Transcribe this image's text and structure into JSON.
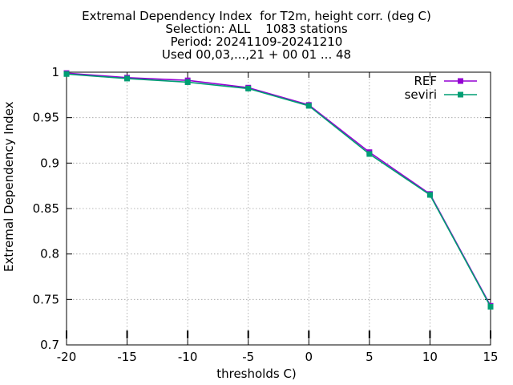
{
  "chart_data": {
    "type": "line",
    "title_lines": [
      "Extremal Dependency Index  for T2m, height corr. (deg C)",
      "Selection: ALL    1083 stations",
      "Period: 20241109-20241210",
      "Used 00,03,...,21 + 00 01 ... 48"
    ],
    "xlabel": "thresholds C)",
    "ylabel": "Extremal Dependency Index",
    "x": [
      -20,
      -15,
      -10,
      -5,
      0,
      5,
      10,
      15
    ],
    "x_ticks": [
      "-20",
      "-15",
      "-10",
      "-5",
      "0",
      "5",
      "10",
      "15"
    ],
    "y_ticks": [
      "1",
      "0.95",
      "0.9",
      "0.85",
      "0.8",
      "0.75",
      "0.7"
    ],
    "xlim": [
      -20,
      15
    ],
    "ylim": [
      0.7,
      1.0
    ],
    "grid": true,
    "legend_position": "top-right",
    "series": [
      {
        "name": "REF",
        "color": "#9400d3",
        "values": [
          0.999,
          0.994,
          0.991,
          0.983,
          0.964,
          0.912,
          0.866,
          0.743
        ]
      },
      {
        "name": "seviri",
        "color": "#009e73",
        "values": [
          0.998,
          0.993,
          0.989,
          0.982,
          0.963,
          0.91,
          0.865,
          0.742
        ]
      }
    ]
  }
}
